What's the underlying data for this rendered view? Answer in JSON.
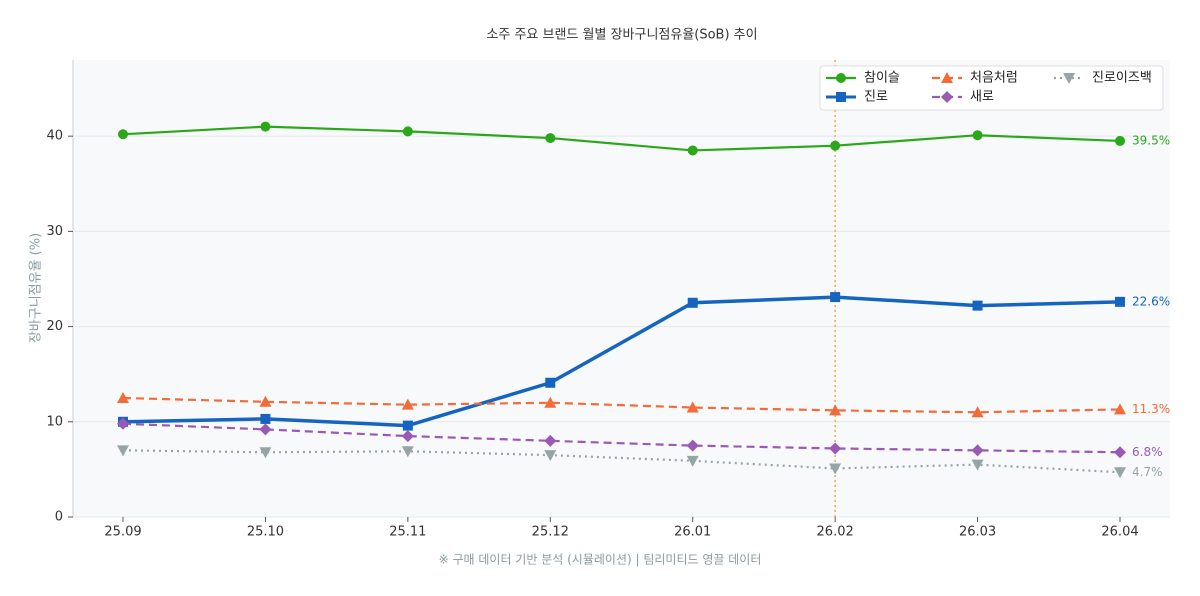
{
  "chart_data": {
    "type": "line",
    "title": "소주 주요 브랜드 월별 장바구니점유율(SoB) 추이",
    "y_label": "장바구니점유율 (%)",
    "footnote": "※ 구매 데이터 기반 분석 (시뮬레이션)  |  팀리미티드 영끌 데이터",
    "categories": [
      "25.09",
      "25.10",
      "25.11",
      "25.12",
      "26.01",
      "26.02",
      "26.03",
      "26.04"
    ],
    "ylim": [
      0,
      48
    ],
    "yticks": [
      0,
      10,
      20,
      30,
      40
    ],
    "grid": true,
    "vline_category": "26.02",
    "vline_color": "#f5a742",
    "legend": "upper right",
    "series": [
      {
        "name": "참이슬",
        "color": "#2aa81a",
        "marker": "circle",
        "dash": "solid",
        "linewidth": 2.2,
        "values": [
          40.2,
          41.0,
          40.5,
          39.8,
          38.5,
          39.0,
          40.1,
          39.5
        ],
        "value_labels": [
          null,
          null,
          null,
          null,
          null,
          null,
          null,
          "39.5%"
        ]
      },
      {
        "name": "진로",
        "color": "#1565c0",
        "marker": "square",
        "dash": "solid",
        "linewidth": 3.5,
        "values": [
          10.0,
          10.3,
          9.6,
          14.1,
          22.5,
          23.1,
          22.2,
          22.6
        ],
        "value_labels": [
          null,
          null,
          null,
          null,
          null,
          null,
          null,
          "22.6%"
        ]
      },
      {
        "name": "처음처럼",
        "color": "#f26b38",
        "marker": "triangle-up",
        "dash": "dashed",
        "linewidth": 2.2,
        "values": [
          12.5,
          12.1,
          11.8,
          12.0,
          11.5,
          11.2,
          11.0,
          11.3
        ],
        "value_labels": [
          null,
          null,
          null,
          null,
          null,
          null,
          null,
          "11.3%"
        ]
      },
      {
        "name": "새로",
        "color": "#9b59b6",
        "marker": "diamond",
        "dash": "dashed",
        "linewidth": 2.2,
        "values": [
          9.8,
          9.2,
          8.5,
          8.0,
          7.5,
          7.2,
          7.0,
          6.8
        ],
        "value_labels": [
          null,
          null,
          null,
          null,
          null,
          null,
          null,
          "6.8%"
        ]
      },
      {
        "name": "진로이즈백",
        "color": "#95a5a6",
        "marker": "triangle-down",
        "dash": "dotted",
        "linewidth": 2.2,
        "values": [
          7.0,
          6.8,
          6.9,
          6.5,
          5.9,
          5.1,
          5.5,
          4.7
        ],
        "value_labels": [
          null,
          null,
          null,
          null,
          null,
          null,
          null,
          "4.7%"
        ]
      }
    ]
  }
}
